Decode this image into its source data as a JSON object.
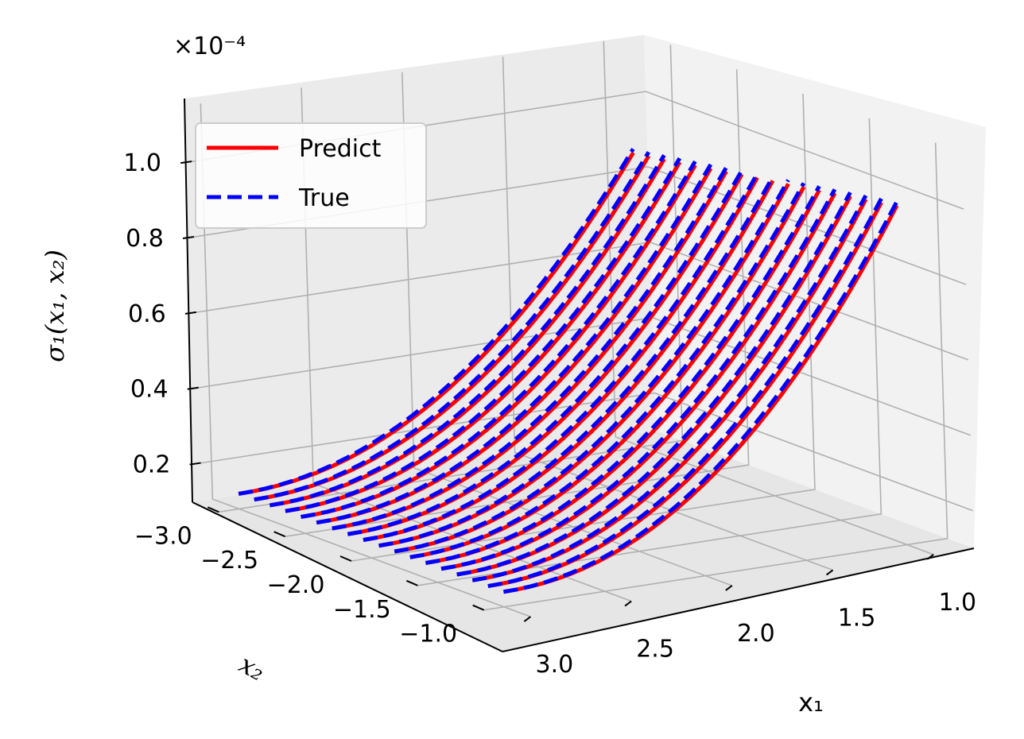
{
  "chart_data": {
    "type": "line",
    "projection": "3d",
    "xlabel": "x₁",
    "ylabel": "x₂",
    "zlabel": "σ₁(x₁, x₂)",
    "zscale_label": "×10⁻⁴",
    "x_range": [
      0.8,
      3.1
    ],
    "y_range": [
      -3.2,
      -0.8
    ],
    "z_range": [
      0.1,
      1.15
    ],
    "x_ticks": [
      "1.0",
      "1.5",
      "2.0",
      "2.5",
      "3.0"
    ],
    "y_ticks": [
      "−3.0",
      "−2.5",
      "−2.0",
      "−1.5",
      "−1.0"
    ],
    "z_ticks": [
      "0.2",
      "0.4",
      "0.6",
      "0.8",
      "1.0"
    ],
    "grid": true,
    "legend_position": "upper-left",
    "series": [
      {
        "name": "Predict",
        "color": "#ff0000",
        "style": "solid"
      },
      {
        "name": "True",
        "color": "#0000ff",
        "style": "dashed"
      }
    ]
  }
}
